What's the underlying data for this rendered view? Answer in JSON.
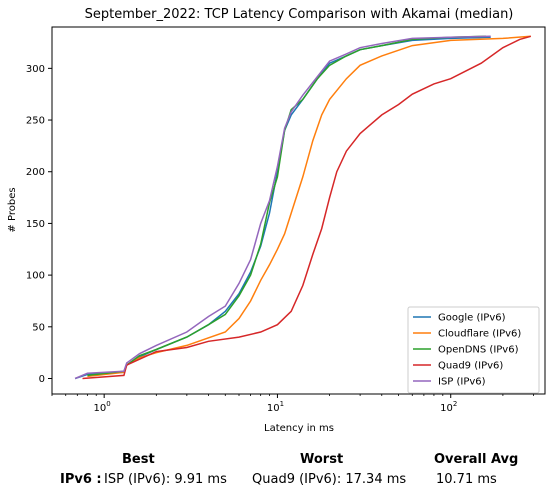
{
  "chart_data": {
    "type": "line",
    "title": "September_2022: TCP Latency Comparison with Akamai (median)",
    "xlabel": "Latency in ms",
    "ylabel": "# Probes",
    "xscale": "log",
    "xlim": [
      0.5,
      350
    ],
    "ylim": [
      -15,
      340
    ],
    "xticks": [
      {
        "value": 1,
        "label": "10^0"
      },
      {
        "value": 10,
        "label": "10^1"
      },
      {
        "value": 100,
        "label": "10^2"
      }
    ],
    "yticks": [
      0,
      50,
      100,
      150,
      200,
      250,
      300
    ],
    "grid": false,
    "legend": "bottom-right",
    "series": [
      {
        "name": "Google (IPv6)",
        "color": "#1f77b4",
        "x": [
          0.68,
          0.8,
          1.3,
          1.35,
          1.6,
          2.0,
          3.0,
          4.0,
          5.0,
          6.0,
          7.0,
          8.0,
          9.0,
          10.0,
          11.0,
          12.0,
          14.0,
          17.0,
          20.0,
          25.0,
          30.0,
          40.0,
          60.0,
          100.0,
          170.0
        ],
        "y": [
          0,
          4,
          6,
          13,
          21,
          28,
          40,
          52,
          65,
          82,
          103,
          128,
          160,
          200,
          240,
          255,
          270,
          290,
          305,
          312,
          318,
          322,
          327,
          329,
          330
        ]
      },
      {
        "name": "Cloudflare (IPv6)",
        "color": "#ff7f0e",
        "x": [
          0.8,
          1.3,
          1.35,
          1.6,
          2.0,
          3.0,
          5.0,
          6.0,
          7.0,
          8.0,
          9.0,
          10.0,
          11.0,
          12.0,
          14.0,
          16.0,
          18.0,
          20.0,
          25.0,
          30.0,
          40.0,
          60.0,
          100.0,
          200.0,
          290.0
        ],
        "y": [
          2,
          6,
          13,
          20,
          25,
          32,
          45,
          58,
          75,
          95,
          110,
          125,
          140,
          160,
          195,
          230,
          255,
          270,
          290,
          303,
          312,
          322,
          327,
          329,
          331
        ]
      },
      {
        "name": "OpenDNS (IPv6)",
        "color": "#2ca02c",
        "x": [
          0.8,
          1.3,
          1.35,
          1.6,
          2.0,
          3.0,
          4.0,
          5.0,
          6.0,
          7.0,
          8.0,
          9.0,
          10.0,
          11.0,
          12.0,
          14.0,
          17.0,
          20.0,
          25.0,
          30.0,
          40.0,
          60.0,
          100.0,
          160.0
        ],
        "y": [
          3,
          7,
          13,
          22,
          28,
          40,
          52,
          62,
          80,
          100,
          130,
          170,
          195,
          240,
          260,
          270,
          290,
          303,
          312,
          318,
          322,
          328,
          330,
          331
        ]
      },
      {
        "name": "Quad9 (IPv6)",
        "color": "#d62728",
        "x": [
          0.75,
          1.3,
          1.35,
          2.0,
          3.0,
          4.0,
          6.0,
          8.0,
          10.0,
          12.0,
          14.0,
          16.0,
          18.0,
          20.0,
          22.0,
          25.0,
          30.0,
          40.0,
          50.0,
          60.0,
          80.0,
          100.0,
          150.0,
          200.0,
          250.0,
          290.0
        ],
        "y": [
          0,
          3,
          13,
          26,
          30,
          36,
          40,
          45,
          52,
          65,
          90,
          120,
          145,
          175,
          200,
          220,
          237,
          255,
          265,
          275,
          285,
          290,
          305,
          320,
          328,
          331
        ]
      },
      {
        "name": "ISP (IPv6)",
        "color": "#9467bd",
        "x": [
          0.68,
          0.8,
          1.3,
          1.35,
          1.6,
          2.0,
          3.0,
          4.0,
          5.0,
          6.0,
          7.0,
          8.0,
          9.0,
          10.0,
          11.0,
          12.0,
          14.0,
          17.0,
          20.0,
          25.0,
          30.0,
          40.0,
          60.0,
          100.0,
          170.0
        ],
        "y": [
          0,
          5,
          7,
          15,
          24,
          32,
          45,
          60,
          70,
          92,
          115,
          150,
          172,
          205,
          242,
          258,
          274,
          292,
          307,
          314,
          320,
          324,
          329,
          330,
          331
        ]
      }
    ]
  },
  "summary": {
    "headers": {
      "best": "Best",
      "worst": "Worst",
      "overall": "Overall Avg"
    },
    "row_label": "IPv6 :",
    "best": "ISP (IPv6): 9.91 ms",
    "worst": "Quad9 (IPv6): 17.34 ms",
    "overall": "10.71 ms"
  }
}
